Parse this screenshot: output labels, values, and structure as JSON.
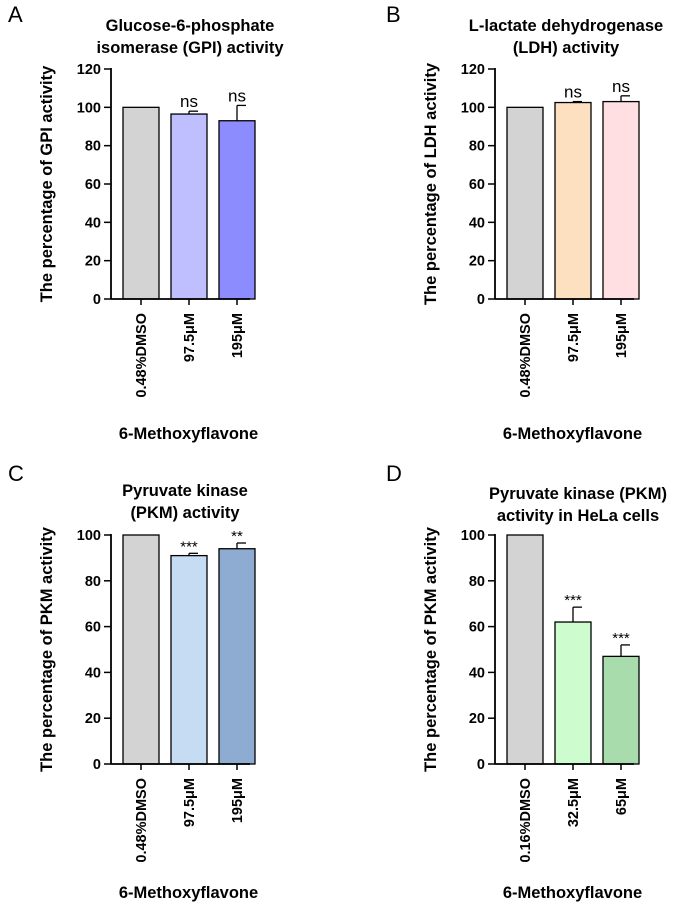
{
  "chart_data": [
    {
      "panel": "A",
      "type": "bar",
      "title": [
        "Glucose-6-phosphate",
        "isomerase (GPI) activity"
      ],
      "ylabel": "The percentage of GPI activity",
      "xlabel": "6-Methoxyflavone",
      "ylim": [
        0,
        120
      ],
      "yticks": [
        0,
        20,
        40,
        60,
        80,
        100,
        120
      ],
      "categories": [
        "0.48%DMSO",
        "97.5μM",
        "195μM"
      ],
      "values": [
        100,
        96.5,
        93
      ],
      "errors": [
        0,
        1.5,
        8
      ],
      "colors": [
        "#d3d3d3",
        "#bfbfff",
        "#8c8cff"
      ],
      "significance": [
        "",
        "ns",
        "ns"
      ]
    },
    {
      "panel": "B",
      "type": "bar",
      "title": [
        "L-lactate dehydrogenase",
        "(LDH) activity"
      ],
      "ylabel": "The percentage of LDH activity",
      "xlabel": "6-Methoxyflavone",
      "ylim": [
        0,
        120
      ],
      "yticks": [
        0,
        20,
        40,
        60,
        80,
        100,
        120
      ],
      "categories": [
        "0.48%DMSO",
        "97.5μM",
        "195μM"
      ],
      "values": [
        100,
        102.5,
        103
      ],
      "errors": [
        0,
        0.5,
        3
      ],
      "colors": [
        "#d3d3d3",
        "#fde0bf",
        "#ffdfe2"
      ],
      "significance": [
        "",
        "ns",
        "ns"
      ]
    },
    {
      "panel": "C",
      "type": "bar",
      "title": [
        "Pyruvate kinase",
        "(PKM) activity"
      ],
      "ylabel": "The percentage of PKM activity",
      "xlabel": "6-Methoxyflavone",
      "ylim": [
        0,
        100
      ],
      "yticks": [
        0,
        20,
        40,
        60,
        80,
        100
      ],
      "categories": [
        "0.48%DMSO",
        "97.5μM",
        "195μM"
      ],
      "values": [
        100,
        91,
        94
      ],
      "errors": [
        0,
        1,
        2.5
      ],
      "colors": [
        "#d3d3d3",
        "#c6dcf2",
        "#8eabd2"
      ],
      "significance": [
        "",
        "***",
        "**"
      ]
    },
    {
      "panel": "D",
      "type": "bar",
      "title": [
        "Pyruvate kinase (PKM)",
        "activity in HeLa cells"
      ],
      "ylabel": "The percentage of PKM activity",
      "xlabel": "6-Methoxyflavone",
      "ylim": [
        0,
        100
      ],
      "yticks": [
        0,
        20,
        40,
        60,
        80,
        100
      ],
      "categories": [
        "0.16%DMSO",
        "32.5μM",
        "65μM"
      ],
      "values": [
        100,
        62,
        47
      ],
      "errors": [
        0,
        6.5,
        5
      ],
      "colors": [
        "#d3d3d3",
        "#cdfcce",
        "#a8dcad"
      ],
      "significance": [
        "",
        "***",
        "***"
      ]
    }
  ]
}
